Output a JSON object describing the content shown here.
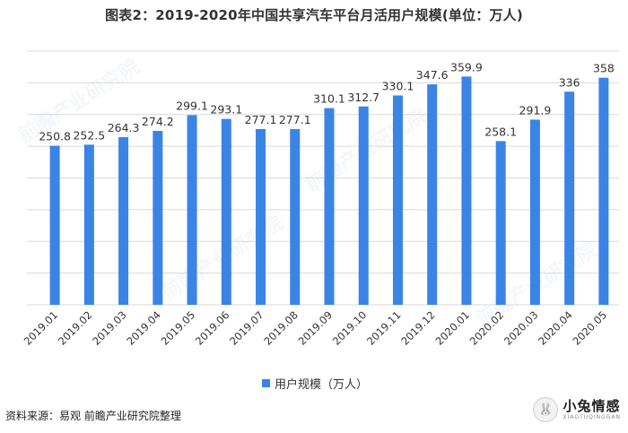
{
  "title": "图表2：2019-2020年中国共享汽车平台月活用户规模(单位：万人)",
  "source": "资料来源：易观 前瞻产业研究院整理",
  "logo": {
    "name": "小兔情感",
    "sub": "XIAOTUQINGGAN",
    "icon": "rabbit-icon"
  },
  "watermark": "前瞻产业研究院",
  "colors": {
    "bar": "#3a84e6",
    "grid": "#d9d9d9",
    "text": "#333333"
  },
  "chart_data": {
    "type": "bar",
    "categories": [
      "2019.01",
      "2019.02",
      "2019.03",
      "2019.04",
      "2019.05",
      "2019.06",
      "2019.07",
      "2019.08",
      "2019.09",
      "2019.10",
      "2019.11",
      "2019.12",
      "2020.01",
      "2020.02",
      "2020.03",
      "2020.04",
      "2020.05"
    ],
    "series": [
      {
        "name": "用户规模（万人）",
        "values": [
          250.8,
          252.5,
          264.3,
          274.2,
          299.1,
          293.1,
          277.1,
          277.1,
          310.1,
          312.7,
          330.1,
          347.6,
          359.9,
          258.1,
          291.9,
          336,
          358
        ]
      }
    ],
    "value_labels": [
      "250.8",
      "252.5",
      "264.3",
      "274.2",
      "299.1",
      "293.1",
      "277.1",
      "277.1",
      "310.1",
      "312.7",
      "330.1",
      "347.6",
      "359.9",
      "258.1",
      "291.9",
      "336",
      "358"
    ],
    "ylim": [
      0,
      400
    ],
    "grid": true,
    "legend_position": "bottom-center",
    "xlabel": "",
    "ylabel": ""
  }
}
